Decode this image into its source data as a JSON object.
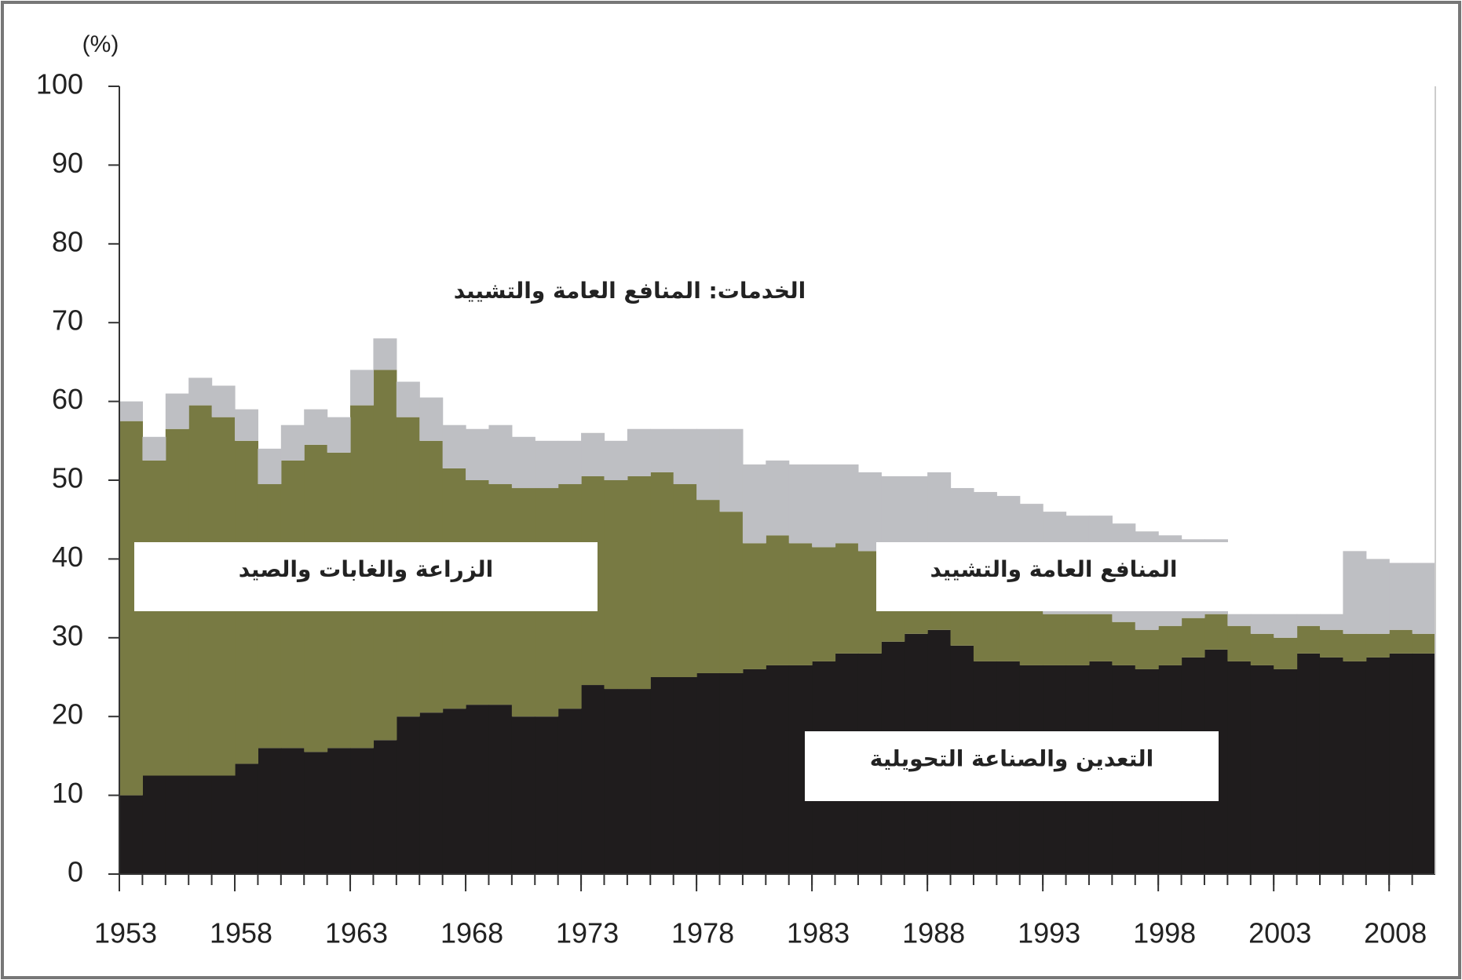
{
  "chart_data": {
    "type": "stacked-step-area",
    "y_label": "(%)",
    "x": [
      1953,
      1954,
      1955,
      1956,
      1957,
      1958,
      1959,
      1960,
      1961,
      1962,
      1963,
      1964,
      1965,
      1966,
      1967,
      1968,
      1969,
      1970,
      1971,
      1972,
      1973,
      1974,
      1975,
      1976,
      1977,
      1978,
      1979,
      1980,
      1981,
      1982,
      1983,
      1984,
      1985,
      1986,
      1987,
      1988,
      1989,
      1990,
      1991,
      1992,
      1993,
      1994,
      1995,
      1996,
      1997,
      1998,
      1999,
      2000,
      2001,
      2002,
      2003,
      2004,
      2005,
      2006,
      2007,
      2008,
      2009
    ],
    "xlim": [
      1953,
      2010
    ],
    "xticks": [
      1953,
      1958,
      1963,
      1968,
      1973,
      1978,
      1983,
      1988,
      1993,
      1998,
      2003,
      2008
    ],
    "ylim": [
      0,
      100
    ],
    "yticks": [
      0,
      10,
      20,
      30,
      40,
      50,
      60,
      70,
      80,
      90,
      100
    ],
    "series": [
      {
        "name": "التعدين والصناعة التحويلية",
        "color": "#1f1c1d",
        "values": [
          10,
          12.5,
          12.5,
          12.5,
          12.5,
          14,
          16,
          16,
          15.5,
          16,
          16,
          17,
          20,
          20.5,
          21,
          21.5,
          21.5,
          20,
          20,
          21,
          24,
          23.5,
          23.5,
          25,
          25,
          25.5,
          25.5,
          26,
          26.5,
          26.5,
          27,
          28,
          28,
          29.5,
          30.5,
          31,
          29,
          27,
          27,
          26.5,
          26.5,
          26.5,
          27,
          26.5,
          26,
          26.5,
          27.5,
          28.5,
          27,
          26.5,
          26,
          28,
          27.5,
          27,
          27.5,
          28,
          28
        ]
      },
      {
        "name": "الزراعة والغابات والصيد",
        "color": "#787a43",
        "values": [
          47.5,
          40,
          44,
          47,
          45.5,
          41,
          33.5,
          36.5,
          39,
          37.5,
          43.5,
          47,
          38,
          34.5,
          30.5,
          28.5,
          28,
          29,
          29,
          28.5,
          26.5,
          26.5,
          27,
          26,
          24.5,
          22,
          20.5,
          16,
          16.5,
          15.5,
          14.5,
          14,
          13,
          8.5,
          6.5,
          5,
          6,
          7,
          6.5,
          7,
          6.5,
          6.5,
          6,
          5.5,
          5,
          5,
          5,
          4.5,
          4.5,
          4,
          4,
          3.5,
          3.5,
          3.5,
          3,
          3,
          2.5
        ]
      },
      {
        "name": "المنافع العامة والتشييد",
        "color": "#bebfc3",
        "values": [
          2.5,
          3,
          4.5,
          3.5,
          4,
          4,
          4.5,
          4.5,
          4.5,
          4.5,
          4.5,
          4,
          4.5,
          5.5,
          5.5,
          6.5,
          7.5,
          6.5,
          6,
          5.5,
          5.5,
          5,
          6,
          5.5,
          7,
          9,
          10.5,
          10,
          9.5,
          10,
          10.5,
          10,
          10,
          12.5,
          13.5,
          15,
          14,
          14.5,
          14.5,
          13.5,
          13,
          12.5,
          12.5,
          12.5,
          12.5,
          11.5,
          10,
          9.5,
          1.5,
          2.5,
          3,
          1.5,
          2,
          10.5,
          9.5,
          8.5,
          9
        ]
      }
    ],
    "annotation": "الخدمات: المنافع العامة والتشييد"
  }
}
